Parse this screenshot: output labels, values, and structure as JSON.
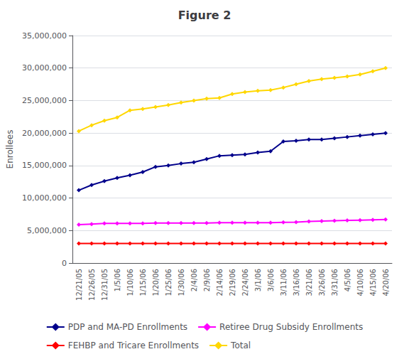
{
  "chart_data": {
    "type": "line",
    "title": "Figure 2",
    "ylabel": "Enrollees",
    "categories": [
      "12/21/05",
      "12/26/05",
      "12/31/05",
      "1/5/06",
      "1/10/06",
      "1/15/06",
      "1/20/06",
      "1/25/06",
      "1/30/06",
      "2/4/06",
      "2/9/06",
      "2/14/06",
      "2/19/06",
      "2/24/06",
      "3/1/06",
      "3/6/06",
      "3/11/06",
      "3/16/06",
      "3/21/06",
      "3/26/06",
      "3/31/06",
      "4/5/06",
      "4/10/06",
      "4/15/06",
      "4/20/06"
    ],
    "series": [
      {
        "name": "PDP and MA-PD Enrollments",
        "color": "#00008B",
        "values": [
          11200000,
          12000000,
          12600000,
          13100000,
          13500000,
          14000000,
          14800000,
          15000000,
          15300000,
          15500000,
          16000000,
          16500000,
          16600000,
          16700000,
          17000000,
          17200000,
          18700000,
          18800000,
          19000000,
          19000000,
          19200000,
          19400000,
          19600000,
          19800000,
          20000000
        ]
      },
      {
        "name": "Retiree Drug Subsidy Enrollments",
        "color": "#FF00FF",
        "values": [
          5900000,
          6000000,
          6100000,
          6100000,
          6100000,
          6100000,
          6150000,
          6150000,
          6150000,
          6150000,
          6150000,
          6200000,
          6200000,
          6200000,
          6200000,
          6200000,
          6250000,
          6300000,
          6400000,
          6450000,
          6500000,
          6550000,
          6600000,
          6650000,
          6700000
        ]
      },
      {
        "name": "FEHBP and Tricare Enrollments",
        "color": "#FF0000",
        "values": [
          3000000,
          3000000,
          3000000,
          3000000,
          3000000,
          3000000,
          3000000,
          3000000,
          3000000,
          3000000,
          3000000,
          3000000,
          3000000,
          3000000,
          3000000,
          3000000,
          3000000,
          3000000,
          3000000,
          3000000,
          3000000,
          3000000,
          3000000,
          3000000,
          3000000
        ]
      },
      {
        "name": "Total",
        "color": "#FFD700",
        "values": [
          20300000,
          21200000,
          21900000,
          22400000,
          23500000,
          23700000,
          24000000,
          24300000,
          24700000,
          25000000,
          25300000,
          25400000,
          26000000,
          26300000,
          26500000,
          26600000,
          27000000,
          27500000,
          28000000,
          28300000,
          28500000,
          28700000,
          29000000,
          29500000,
          30000000
        ]
      }
    ],
    "ylim": [
      0,
      35000000
    ],
    "yticks": [
      0,
      {
        "value": 5000000,
        "label": "5,000,000"
      },
      {
        "value": 10000000,
        "label": "10,000,000"
      },
      {
        "value": 15000000,
        "label": "15,000,000"
      },
      {
        "value": 20000000,
        "label": "20,000,000"
      },
      {
        "value": 25000000,
        "label": "25,000,000"
      },
      {
        "value": 30000000,
        "label": "30,000,000"
      },
      {
        "value": 35000000,
        "label": "35,000,000"
      }
    ],
    "grid": true,
    "legend": "bottom",
    "marker": "diamond"
  }
}
